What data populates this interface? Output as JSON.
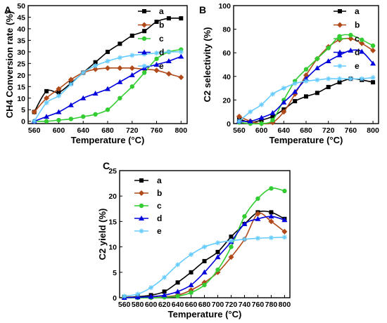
{
  "chart_data": [
    {
      "type": "line",
      "panel": "A",
      "xlabel": "Temperature (°C)",
      "ylabel": "CH4 Conversion rate (%)",
      "xticks": [
        560,
        600,
        640,
        680,
        720,
        760,
        800
      ],
      "yticks": [
        0,
        5,
        10,
        15,
        20,
        25,
        30,
        35,
        40,
        45,
        50
      ],
      "xlim": [
        550,
        810
      ],
      "ylim": [
        -1,
        50
      ],
      "legend": "top-right",
      "series": [
        {
          "name": "a",
          "color": "#000000",
          "marker": "square",
          "x": [
            560,
            580,
            600,
            620,
            640,
            660,
            680,
            700,
            720,
            740,
            760,
            780,
            800
          ],
          "y": [
            4,
            13,
            12.5,
            16.5,
            21,
            25.5,
            30,
            33.5,
            37,
            39,
            43,
            44.5,
            44.5
          ]
        },
        {
          "name": "b",
          "color": "#b04a1a",
          "marker": "diamond",
          "x": [
            560,
            580,
            600,
            620,
            640,
            660,
            680,
            700,
            720,
            740,
            760,
            780,
            800
          ],
          "y": [
            4,
            10,
            14,
            18,
            21,
            22.5,
            23,
            23,
            23,
            22.5,
            22,
            20.5,
            19
          ]
        },
        {
          "name": "c",
          "color": "#33cc33",
          "marker": "circle",
          "x": [
            560,
            580,
            600,
            620,
            640,
            660,
            680,
            700,
            720,
            740,
            760,
            780,
            800
          ],
          "y": [
            0,
            0,
            0.5,
            1,
            2,
            3,
            5,
            10,
            15,
            21,
            27,
            30,
            31
          ]
        },
        {
          "name": "d",
          "color": "#0000dd",
          "marker": "triangle",
          "x": [
            560,
            580,
            600,
            620,
            640,
            660,
            680,
            700,
            720,
            740,
            760,
            780,
            800
          ],
          "y": [
            0,
            2,
            4,
            7,
            10,
            12,
            14,
            17,
            20,
            23,
            24.5,
            26,
            28
          ]
        },
        {
          "name": "e",
          "color": "#66ccff",
          "marker": "star",
          "x": [
            560,
            580,
            600,
            620,
            640,
            660,
            680,
            700,
            720,
            740,
            760,
            780,
            800
          ],
          "y": [
            0,
            8,
            11,
            16,
            21,
            24,
            26,
            27.5,
            28.5,
            29,
            29.5,
            30,
            30
          ]
        }
      ]
    },
    {
      "type": "line",
      "panel": "B",
      "xlabel": "Temperature (°C)",
      "ylabel": "C2 selectivity (%)",
      "xticks": [
        560,
        600,
        640,
        680,
        720,
        760,
        800
      ],
      "yticks": [
        0,
        20,
        40,
        60,
        80,
        100
      ],
      "xlim": [
        550,
        810
      ],
      "ylim": [
        0,
        100
      ],
      "legend": "top-right",
      "series": [
        {
          "name": "a",
          "color": "#000000",
          "marker": "square",
          "x": [
            560,
            580,
            600,
            620,
            640,
            660,
            680,
            700,
            720,
            740,
            760,
            780,
            800
          ],
          "y": [
            4,
            1,
            3,
            6,
            12,
            19,
            23,
            26,
            31,
            35,
            38,
            37,
            35
          ]
        },
        {
          "name": "b",
          "color": "#b04a1a",
          "marker": "diamond",
          "x": [
            560,
            580,
            600,
            620,
            640,
            660,
            680,
            700,
            720,
            740,
            760,
            780,
            800
          ],
          "y": [
            6,
            2,
            0,
            1,
            10,
            25,
            41,
            55,
            65,
            71,
            72,
            68,
            62
          ]
        },
        {
          "name": "c",
          "color": "#33cc33",
          "marker": "circle",
          "x": [
            560,
            580,
            600,
            620,
            640,
            660,
            680,
            700,
            720,
            740,
            760,
            780,
            800
          ],
          "y": [
            1,
            0,
            0,
            3,
            20,
            36,
            46,
            55,
            64,
            74,
            75,
            71,
            66
          ]
        },
        {
          "name": "d",
          "color": "#0000dd",
          "marker": "triangle",
          "x": [
            560,
            580,
            600,
            620,
            640,
            660,
            680,
            700,
            720,
            740,
            760,
            780,
            800
          ],
          "y": [
            2,
            2,
            5,
            9,
            18,
            27,
            38,
            47,
            53,
            58,
            62,
            61,
            51
          ]
        },
        {
          "name": "e",
          "color": "#66ccff",
          "marker": "star",
          "x": [
            560,
            580,
            600,
            620,
            640,
            660,
            680,
            700,
            720,
            740,
            760,
            780,
            800
          ],
          "y": [
            2,
            10,
            16,
            25,
            30,
            34,
            36,
            37,
            38,
            38,
            38,
            38,
            39
          ]
        }
      ]
    },
    {
      "type": "line",
      "panel": "C",
      "xlabel": "Temperature (°C)",
      "ylabel": "C2 yield (%)",
      "xticks": [
        560,
        580,
        600,
        620,
        640,
        660,
        680,
        700,
        720,
        740,
        760,
        780,
        800
      ],
      "yticks": [
        0,
        5,
        10,
        15,
        20,
        25
      ],
      "xlim": [
        553,
        808
      ],
      "ylim": [
        0,
        25
      ],
      "legend": "top-left",
      "series": [
        {
          "name": "a",
          "color": "#000000",
          "marker": "square",
          "x": [
            560,
            580,
            600,
            620,
            640,
            660,
            680,
            700,
            720,
            740,
            760,
            780,
            800
          ],
          "y": [
            0.1,
            0.2,
            0.5,
            1.2,
            3,
            5,
            7.2,
            9,
            12,
            14.5,
            16.8,
            16.8,
            15.5
          ]
        },
        {
          "name": "b",
          "color": "#b04a1a",
          "marker": "diamond",
          "x": [
            560,
            580,
            600,
            620,
            640,
            660,
            680,
            700,
            720,
            740,
            760,
            780,
            800
          ],
          "y": [
            0.1,
            0.1,
            0.1,
            0.2,
            0.5,
            1.5,
            3,
            5,
            8,
            11.5,
            16.5,
            15,
            13
          ]
        },
        {
          "name": "c",
          "color": "#33cc33",
          "marker": "circle",
          "x": [
            560,
            580,
            600,
            620,
            640,
            660,
            680,
            700,
            720,
            740,
            760,
            780,
            800
          ],
          "y": [
            0,
            0,
            0,
            0.1,
            0.3,
            1,
            2.5,
            5.5,
            10,
            16,
            19.5,
            21.5,
            21
          ]
        },
        {
          "name": "d",
          "color": "#0000dd",
          "marker": "triangle",
          "x": [
            560,
            580,
            600,
            620,
            640,
            660,
            680,
            700,
            720,
            740,
            760,
            780,
            800
          ],
          "y": [
            0,
            0.1,
            0.2,
            0.5,
            1.2,
            2.5,
            5,
            8,
            11,
            14.5,
            15.5,
            16,
            15.3
          ]
        },
        {
          "name": "e",
          "color": "#66ccff",
          "marker": "star",
          "x": [
            560,
            580,
            600,
            620,
            640,
            660,
            680,
            700,
            720,
            740,
            760,
            780,
            800
          ],
          "y": [
            0.3,
            0.7,
            2,
            4,
            6.5,
            8.5,
            10,
            10.8,
            11.2,
            11.5,
            11.7,
            11.8,
            11.9
          ]
        }
      ]
    }
  ]
}
